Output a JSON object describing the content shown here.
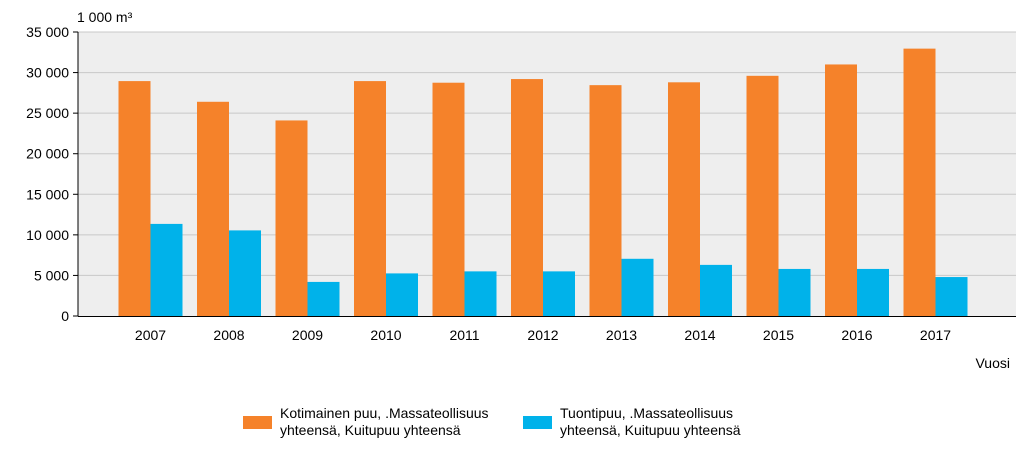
{
  "chart_data": {
    "type": "bar",
    "unit_label": "1 000 m³",
    "xlabel": "Vuosi",
    "ylabel": "",
    "categories": [
      "2007",
      "2008",
      "2009",
      "2010",
      "2011",
      "2012",
      "2013",
      "2014",
      "2015",
      "2016",
      "2017"
    ],
    "series": [
      {
        "name_lines": [
          "Kotimainen puu, .Massateollisuus",
          "yhteensä, Kuitupuu yhteensä"
        ],
        "color": "#f5822a",
        "values": [
          28950,
          26400,
          24100,
          28950,
          28750,
          29200,
          28450,
          28800,
          29600,
          31000,
          32950
        ]
      },
      {
        "name_lines": [
          "Tuontipuu, .Massateollisuus",
          "yhteensä, Kuitupuu yhteensä"
        ],
        "color": "#00b2ea",
        "values": [
          11350,
          10550,
          4200,
          5250,
          5500,
          5500,
          7050,
          6300,
          5800,
          5800,
          4800
        ]
      }
    ],
    "ylim": [
      0,
      35000
    ],
    "yticks": [
      0,
      5000,
      10000,
      15000,
      20000,
      25000,
      30000,
      35000
    ],
    "ytick_labels": [
      "0",
      "5 000",
      "10 000",
      "15 000",
      "20 000",
      "25 000",
      "30 000",
      "35 000"
    ],
    "grid": true,
    "plot_background": "#eeeeee",
    "gridline_color": "#c8c8c8",
    "legend_position": "bottom"
  }
}
